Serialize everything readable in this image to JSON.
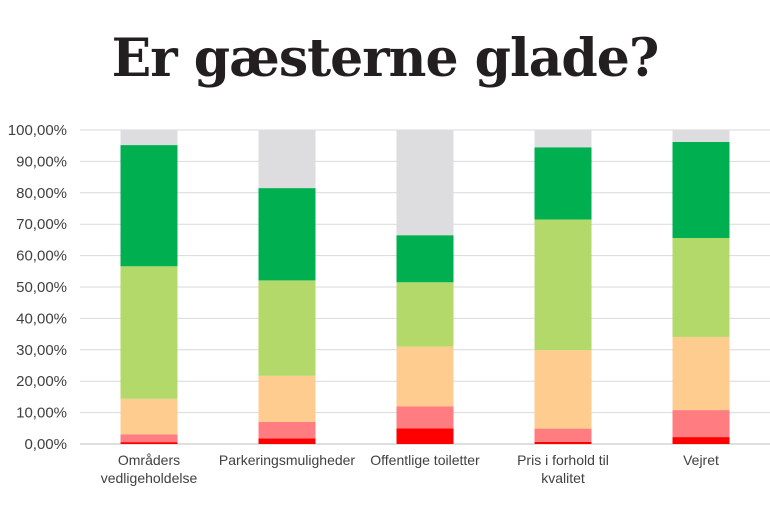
{
  "chart_data": {
    "type": "bar",
    "stacked": true,
    "title": "Er gæsterne glade?",
    "categories": [
      [
        "Områders",
        "vedligeholdelse"
      ],
      [
        "Parkeringsmuligheder"
      ],
      [
        "Offentlige toiletter"
      ],
      [
        "Pris i forhold til",
        "kvalitet"
      ],
      [
        "Vejret"
      ]
    ],
    "series": [
      {
        "color": "#ff0000",
        "values": [
          0.6,
          1.8,
          5.0,
          0.7,
          2.2
        ]
      },
      {
        "color": "#ff7c80",
        "values": [
          2.5,
          5.2,
          7.0,
          4.2,
          8.6
        ]
      },
      {
        "color": "#ffcc8f",
        "values": [
          11.3,
          14.7,
          19.0,
          25.0,
          23.3
        ]
      },
      {
        "color": "#b3d96b",
        "values": [
          42.2,
          30.4,
          20.5,
          41.6,
          31.5
        ]
      },
      {
        "color": "#00b050",
        "values": [
          38.6,
          29.4,
          15.0,
          23.0,
          30.6
        ]
      },
      {
        "color": "#dddddf",
        "values": [
          4.8,
          18.5,
          33.5,
          5.5,
          3.8
        ]
      }
    ],
    "yticks": [
      "0,00%",
      "10,00%",
      "20,00%",
      "30,00%",
      "40,00%",
      "50,00%",
      "60,00%",
      "70,00%",
      "80,00%",
      "90,00%",
      "100,00%"
    ],
    "ylim": [
      0,
      100
    ],
    "grid": true
  }
}
